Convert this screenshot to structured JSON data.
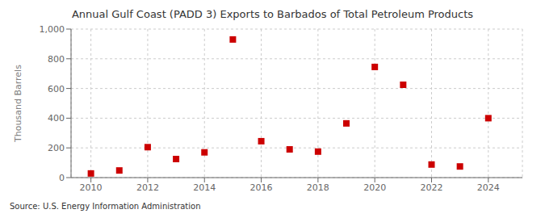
{
  "chart_data": {
    "type": "scatter",
    "title": "Annual Gulf Coast (PADD 3) Exports to Barbados of Total Petroleum Products",
    "ylabel": "Thousand Barrels",
    "annotations": [
      "Source: U.S. Energy Information Administration"
    ],
    "x": [
      2010,
      2011,
      2012,
      2013,
      2014,
      2015,
      2016,
      2017,
      2018,
      2019,
      2020,
      2021,
      2022,
      2023,
      2024
    ],
    "values": [
      28,
      48,
      205,
      125,
      170,
      930,
      245,
      190,
      175,
      365,
      745,
      625,
      88,
      75,
      400
    ],
    "color": "#cc0000",
    "marker": "square",
    "xlim": [
      2009.3,
      2025.2
    ],
    "xticks": [
      2010,
      2012,
      2014,
      2016,
      2018,
      2020,
      2022,
      2024
    ],
    "ylim": [
      0,
      1000
    ],
    "yticks": [
      0,
      200,
      400,
      600,
      800,
      {
        "value": 1000,
        "label": "1,000"
      }
    ],
    "grid": true
  }
}
